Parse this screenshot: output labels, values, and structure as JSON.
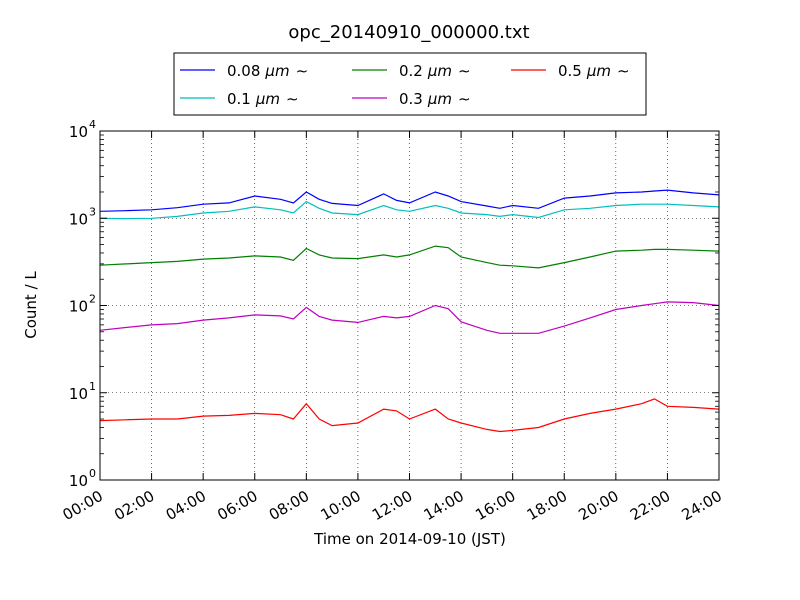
{
  "chart_data": {
    "type": "line",
    "title": "opc_20140910_000000.txt",
    "xlabel": "Time on 2014-09-10 (JST)",
    "ylabel": "Count / L",
    "yscale": "log",
    "ylim": [
      1,
      10000
    ],
    "xlim": [
      "00:00",
      "24:00"
    ],
    "grid": true,
    "legend_position": "top-center (above plot)",
    "x_ticks": [
      "00:00",
      "02:00",
      "04:00",
      "06:00",
      "08:00",
      "10:00",
      "12:00",
      "14:00",
      "16:00",
      "18:00",
      "20:00",
      "22:00",
      "24:00"
    ],
    "y_ticks": [
      {
        "value": 1,
        "base": "10",
        "exp": "0"
      },
      {
        "value": 10,
        "base": "10",
        "exp": "1"
      },
      {
        "value": 100,
        "base": "10",
        "exp": "2"
      },
      {
        "value": 1000,
        "base": "10",
        "exp": "3"
      },
      {
        "value": 10000,
        "base": "10",
        "exp": "4"
      }
    ],
    "x": [
      "00:00",
      "01:00",
      "02:00",
      "03:00",
      "04:00",
      "05:00",
      "06:00",
      "07:00",
      "07:30",
      "08:00",
      "08:30",
      "09:00",
      "10:00",
      "11:00",
      "11:30",
      "12:00",
      "13:00",
      "13:30",
      "14:00",
      "15:00",
      "15:30",
      "16:00",
      "17:00",
      "18:00",
      "19:00",
      "20:00",
      "21:00",
      "21:30",
      "22:00",
      "23:00",
      "24:00"
    ],
    "series": [
      {
        "name": "0.08",
        "color": "#0000ff",
        "values": [
          1200,
          1220,
          1250,
          1320,
          1450,
          1500,
          1800,
          1650,
          1500,
          2000,
          1650,
          1480,
          1400,
          1900,
          1600,
          1500,
          2000,
          1800,
          1550,
          1380,
          1300,
          1400,
          1300,
          1700,
          1800,
          1950,
          2000,
          2050,
          2100,
          1950,
          1850
        ]
      },
      {
        "name": "0.1",
        "color": "#00bfbf",
        "values": [
          1000,
          990,
          1000,
          1050,
          1150,
          1200,
          1350,
          1250,
          1150,
          1550,
          1300,
          1150,
          1100,
          1400,
          1250,
          1200,
          1400,
          1300,
          1150,
          1100,
          1050,
          1100,
          1020,
          1250,
          1300,
          1400,
          1450,
          1450,
          1450,
          1400,
          1350
        ]
      },
      {
        "name": "0.2",
        "color": "#008000",
        "values": [
          290,
          300,
          310,
          320,
          340,
          350,
          370,
          360,
          330,
          450,
          380,
          350,
          345,
          380,
          360,
          380,
          480,
          460,
          360,
          310,
          290,
          285,
          270,
          310,
          360,
          420,
          430,
          440,
          440,
          430,
          420
        ]
      },
      {
        "name": "0.3",
        "color": "#bf00bf",
        "values": [
          52,
          56,
          60,
          62,
          68,
          72,
          78,
          76,
          70,
          95,
          75,
          68,
          64,
          75,
          72,
          75,
          100,
          92,
          65,
          52,
          48,
          48,
          48,
          58,
          72,
          90,
          100,
          105,
          110,
          108,
          100
        ]
      },
      {
        "name": "0.5",
        "color": "#ff0000",
        "values": [
          4.8,
          4.9,
          5.0,
          5.0,
          5.4,
          5.5,
          5.8,
          5.6,
          5.0,
          7.5,
          5.0,
          4.2,
          4.5,
          6.5,
          6.2,
          5.0,
          6.5,
          5.0,
          4.5,
          3.8,
          3.6,
          3.7,
          4.0,
          5.0,
          5.8,
          6.5,
          7.5,
          8.5,
          7.0,
          6.8,
          6.5
        ]
      }
    ]
  },
  "legend": {
    "items": [
      {
        "label": "0.08",
        "unit": "μm",
        "tilde": "∼"
      },
      {
        "label": "0.1",
        "unit": "μm",
        "tilde": "∼"
      },
      {
        "label": "0.2",
        "unit": "μm",
        "tilde": "∼"
      },
      {
        "label": "0.3",
        "unit": "μm",
        "tilde": "∼"
      },
      {
        "label": "0.5",
        "unit": "μm",
        "tilde": "∼"
      }
    ]
  }
}
